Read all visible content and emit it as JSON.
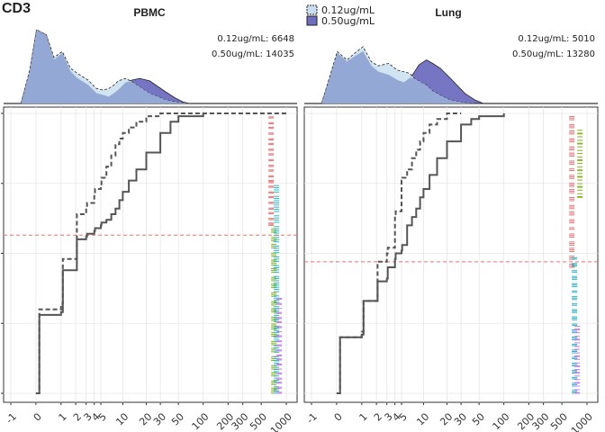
{
  "figure_title": "CD3",
  "legend": {
    "items": [
      {
        "label": "0.12ug/mL",
        "color": "#c9dff0"
      },
      {
        "label": "0.50ug/mL",
        "color": "#6e6ec0"
      }
    ]
  },
  "chart_data": [
    {
      "type": "area",
      "panel": "PBMC",
      "title": "PBMC",
      "annotations": [
        "0.12ug/mL:  6648",
        "0.50ug/mL: 14035"
      ],
      "series": [
        {
          "name": "0.12ug/mL",
          "x": [
            -0.5,
            -0.2,
            0,
            0.3,
            0.6,
            1,
            1.5,
            2,
            3,
            4,
            5,
            6,
            7,
            8,
            10,
            12,
            15,
            20,
            30,
            40,
            50,
            60
          ],
          "values": [
            0.02,
            0.4,
            0.88,
            0.82,
            0.55,
            0.62,
            0.42,
            0.36,
            0.28,
            0.18,
            0.16,
            0.18,
            0.22,
            0.27,
            0.3,
            0.26,
            0.2,
            0.12,
            0.05,
            0.02,
            0.01,
            0
          ]
        },
        {
          "name": "0.50ug/mL",
          "x": [
            -0.5,
            -0.2,
            0,
            0.3,
            0.6,
            1,
            1.5,
            2,
            3,
            4,
            5,
            6,
            7,
            8,
            10,
            12,
            15,
            20,
            30,
            40,
            50,
            60
          ],
          "values": [
            0.02,
            0.38,
            0.88,
            0.82,
            0.52,
            0.6,
            0.38,
            0.3,
            0.22,
            0.12,
            0.1,
            0.08,
            0.12,
            0.16,
            0.25,
            0.28,
            0.3,
            0.27,
            0.15,
            0.07,
            0.02,
            0
          ]
        }
      ],
      "ylim": [
        0,
        1
      ]
    },
    {
      "type": "area",
      "panel": "Lung",
      "title": "Lung",
      "annotations": [
        "0.12ug/mL:  5010",
        "0.50ug/mL: 13280"
      ],
      "series": [
        {
          "name": "0.12ug/mL",
          "x": [
            -0.5,
            -0.2,
            0,
            0.3,
            0.6,
            1,
            1.5,
            2,
            3,
            4,
            5,
            6,
            7,
            8,
            10,
            12,
            15,
            20,
            30,
            40,
            50
          ],
          "values": [
            0.02,
            0.35,
            0.62,
            0.52,
            0.6,
            0.68,
            0.5,
            0.45,
            0.48,
            0.4,
            0.38,
            0.36,
            0.3,
            0.27,
            0.22,
            0.15,
            0.1,
            0.04,
            0.01,
            0,
            0
          ]
        },
        {
          "name": "0.50ug/mL",
          "x": [
            -0.5,
            -0.2,
            0,
            0.3,
            0.6,
            1,
            1.5,
            2,
            3,
            4,
            5,
            6,
            7,
            8,
            10,
            12,
            15,
            20,
            30,
            40,
            50
          ],
          "values": [
            0.02,
            0.33,
            0.6,
            0.5,
            0.56,
            0.62,
            0.45,
            0.38,
            0.34,
            0.28,
            0.25,
            0.3,
            0.38,
            0.46,
            0.52,
            0.48,
            0.42,
            0.3,
            0.12,
            0.04,
            0
          ]
        }
      ],
      "ylim": [
        0,
        1
      ]
    },
    {
      "type": "line",
      "panel": "PBMC-ecdf",
      "xticks": [
        "-1",
        "0",
        "1",
        "2",
        "3",
        "4",
        "5",
        "10",
        "20",
        "30",
        "50",
        "100",
        "200",
        "300",
        "500",
        "1000"
      ],
      "hline": 0.565,
      "series": [
        {
          "name": "0.12ug/mL",
          "style": "dashed",
          "x": [
            0,
            0.1,
            1,
            1.1,
            2,
            2.1,
            3,
            3.1,
            4,
            4.1,
            5,
            5.1,
            6,
            7,
            8,
            9,
            10,
            12,
            15,
            20,
            30,
            40,
            50,
            1000
          ],
          "values": [
            0.0,
            0.3,
            0.32,
            0.48,
            0.48,
            0.64,
            0.66,
            0.68,
            0.71,
            0.73,
            0.74,
            0.77,
            0.81,
            0.85,
            0.89,
            0.91,
            0.93,
            0.95,
            0.97,
            0.99,
            1.0,
            1.0,
            1.0,
            1.0
          ]
        },
        {
          "name": "0.50ug/mL",
          "style": "solid",
          "x": [
            0,
            0.1,
            1,
            1.1,
            2,
            2.1,
            3,
            3.1,
            4,
            4.1,
            5,
            5.1,
            6,
            7,
            8,
            9,
            10,
            12,
            15,
            20,
            30,
            40,
            50,
            100
          ],
          "values": [
            0.0,
            0.28,
            0.29,
            0.44,
            0.44,
            0.55,
            0.56,
            0.57,
            0.58,
            0.59,
            0.6,
            0.61,
            0.62,
            0.64,
            0.66,
            0.69,
            0.72,
            0.76,
            0.8,
            0.86,
            0.93,
            0.97,
            0.99,
            1.0
          ]
        }
      ],
      "rug": {
        "x": 500,
        "bands": [
          {
            "color": "#e57373",
            "from": 0.6,
            "to": 1.0
          },
          {
            "color": "#7cb518",
            "from": 0.0,
            "to": 0.6
          },
          {
            "color": "#26b5c6",
            "from": 0.0,
            "to": 0.75
          },
          {
            "color": "#c77cf0",
            "from": 0.0,
            "to": 0.35
          }
        ]
      }
    },
    {
      "type": "line",
      "panel": "Lung-ecdf",
      "xticks": [
        "-1",
        "0",
        "1",
        "2",
        "3",
        "4",
        "5",
        "10",
        "20",
        "30",
        "50",
        "100",
        "200",
        "300",
        "500",
        "1000"
      ],
      "hline": 0.47,
      "series": [
        {
          "name": "0.12ug/mL",
          "style": "dashed",
          "x": [
            0,
            0.1,
            1,
            1.1,
            2,
            2.1,
            3,
            3.1,
            4,
            4.1,
            5,
            5.1,
            6,
            7,
            8,
            9,
            10,
            12,
            15,
            20,
            30
          ],
          "values": [
            0.0,
            0.2,
            0.22,
            0.33,
            0.33,
            0.47,
            0.5,
            0.52,
            0.64,
            0.65,
            0.76,
            0.77,
            0.8,
            0.84,
            0.87,
            0.9,
            0.93,
            0.96,
            0.98,
            1.0,
            1.0
          ]
        },
        {
          "name": "0.50ug/mL",
          "style": "solid",
          "x": [
            0,
            0.1,
            1,
            1.1,
            2,
            2.1,
            3,
            3.1,
            4,
            4.1,
            5,
            5.1,
            6,
            7,
            8,
            9,
            10,
            12,
            15,
            20,
            30,
            40,
            50,
            100
          ],
          "values": [
            0.0,
            0.2,
            0.21,
            0.33,
            0.33,
            0.4,
            0.41,
            0.45,
            0.48,
            0.5,
            0.51,
            0.53,
            0.6,
            0.63,
            0.66,
            0.7,
            0.73,
            0.78,
            0.84,
            0.9,
            0.96,
            0.98,
            0.99,
            1.0
          ]
        }
      ],
      "rug": {
        "x": 500,
        "bands": [
          {
            "color": "#e57373",
            "from": 0.45,
            "to": 1.0
          },
          {
            "color": "#26b5c6",
            "from": 0.0,
            "to": 0.5
          },
          {
            "color": "#c77cf0",
            "from": 0.0,
            "to": 0.25
          },
          {
            "color": "#7cb518",
            "from": 0.7,
            "to": 0.95
          }
        ]
      }
    }
  ]
}
